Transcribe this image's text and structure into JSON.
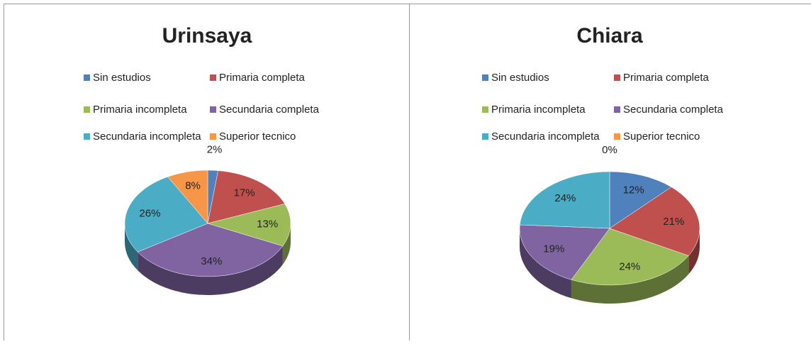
{
  "chart_data": [
    {
      "type": "pie",
      "title": "Urinsaya",
      "categories": [
        "Sin estudios",
        "Primaria completa",
        "Primaria incompleta",
        "Secundaria completa",
        "Secundaria incompleta",
        "Superior tecnico"
      ],
      "values": [
        2,
        17,
        13,
        34,
        26,
        8
      ],
      "value_labels": [
        "2%",
        "17%",
        "13%",
        "34%",
        "26%",
        "8%"
      ],
      "colors": [
        "#4f81bd",
        "#c0504d",
        "#9bbb59",
        "#8064a2",
        "#4bacc6",
        "#f79646"
      ],
      "legend": "top"
    },
    {
      "type": "pie",
      "title": "Chiara",
      "categories": [
        "Sin estudios",
        "Primaria completa",
        "Primaria incompleta",
        "Secundaria completa",
        "Secundaria incompleta",
        "Superior tecnico"
      ],
      "values": [
        12,
        21,
        24,
        19,
        24,
        0
      ],
      "value_labels": [
        "12%",
        "21%",
        "24%",
        "19%",
        "24%",
        "0%"
      ],
      "colors": [
        "#4f81bd",
        "#c0504d",
        "#9bbb59",
        "#8064a2",
        "#4bacc6",
        "#f79646"
      ],
      "legend": "top"
    }
  ]
}
